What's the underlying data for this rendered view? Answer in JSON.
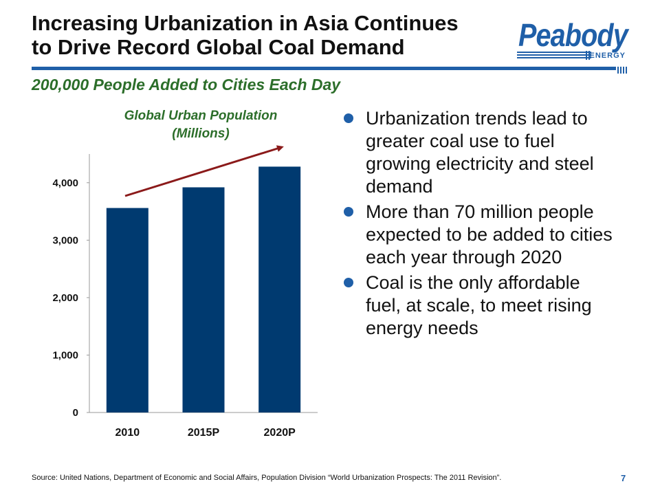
{
  "slide": {
    "title_line1": "Increasing Urbanization in Asia Continues",
    "title_line2": "to Drive Record Global Coal Demand",
    "subtitle": "200,000 People Added to Cities Each Day",
    "page_number": "7",
    "source": "Source:  United Nations, Department of Economic and Social Affairs, Population Division “World Urbanization Prospects:  The 2011 Revision”."
  },
  "logo": {
    "word": "Peabody",
    "energy": "ENERGY",
    "color": "#1f5fa8"
  },
  "bullets": [
    {
      "text": "Urbanization trends lead to greater coal use to fuel growing electricity and steel demand"
    },
    {
      "text": "More than 70 million people expected to be added to cities each year through 2020"
    },
    {
      "text": "Coal is the only affordable fuel, at scale, to meet rising energy needs"
    }
  ],
  "chart_data": {
    "type": "bar",
    "title_line1": "Global Urban Population",
    "title_line2": "(Millions)",
    "categories": [
      "2010",
      "2015P",
      "2020P"
    ],
    "values": [
      3560,
      3920,
      4280
    ],
    "ylim": [
      0,
      4500
    ],
    "yticks": [
      0,
      1000,
      2000,
      3000,
      4000
    ],
    "ytick_labels": [
      "0",
      "1,000",
      "2,000",
      "3,000",
      "4,000"
    ],
    "bar_color": "#003a70",
    "trend_arrow_color": "#8b1a1a",
    "grid": false,
    "legend": "none"
  }
}
